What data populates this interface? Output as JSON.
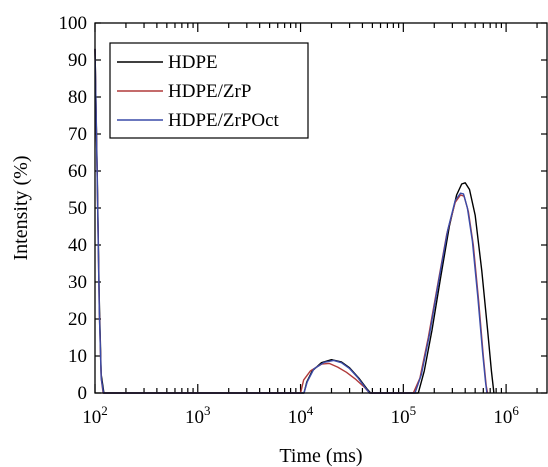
{
  "chart_data": {
    "type": "line",
    "xlabel": "Time (ms)",
    "ylabel": "Intensity (%)",
    "xscale": "log",
    "xlim": [
      100,
      2500000
    ],
    "ylim": [
      0,
      100
    ],
    "yticks": [
      0,
      10,
      20,
      30,
      40,
      50,
      60,
      70,
      80,
      90,
      100
    ],
    "xticks": [
      {
        "value": 100,
        "base": "10",
        "exp": "2"
      },
      {
        "value": 1000,
        "base": "10",
        "exp": "3"
      },
      {
        "value": 10000,
        "base": "10",
        "exp": "4"
      },
      {
        "value": 100000,
        "base": "10",
        "exp": "5"
      },
      {
        "value": 1000000,
        "base": "10",
        "exp": "6"
      }
    ],
    "legend_position": "top-left",
    "grid": false,
    "series": [
      {
        "name": "HDPE",
        "color": "#000000",
        "points": [
          [
            100,
            93
          ],
          [
            105,
            60
          ],
          [
            110,
            25
          ],
          [
            115,
            5
          ],
          [
            122,
            0
          ],
          [
            10800,
            0
          ],
          [
            11500,
            3
          ],
          [
            13000,
            6
          ],
          [
            16000,
            8.2
          ],
          [
            20000,
            9
          ],
          [
            25000,
            8.4
          ],
          [
            30000,
            6.8
          ],
          [
            37000,
            4
          ],
          [
            44000,
            1.2
          ],
          [
            48000,
            0
          ],
          [
            140000,
            0
          ],
          [
            160000,
            6
          ],
          [
            190000,
            17
          ],
          [
            230000,
            31
          ],
          [
            280000,
            45
          ],
          [
            330000,
            53.5
          ],
          [
            370000,
            56.5
          ],
          [
            400000,
            56.8
          ],
          [
            440000,
            55
          ],
          [
            500000,
            48
          ],
          [
            580000,
            33
          ],
          [
            660000,
            17
          ],
          [
            720000,
            6
          ],
          [
            760000,
            0
          ]
        ]
      },
      {
        "name": "HDPE/ZrP",
        "color": "#b03a3a",
        "points": [
          [
            100,
            93
          ],
          [
            105,
            58
          ],
          [
            110,
            22
          ],
          [
            115,
            4
          ],
          [
            120,
            0
          ],
          [
            10000,
            0
          ],
          [
            10700,
            3.5
          ],
          [
            12500,
            6
          ],
          [
            16000,
            7.8
          ],
          [
            19000,
            8
          ],
          [
            23000,
            7
          ],
          [
            28000,
            5.6
          ],
          [
            34000,
            3.8
          ],
          [
            42000,
            1.5
          ],
          [
            47000,
            0
          ],
          [
            125000,
            0
          ],
          [
            145000,
            4
          ],
          [
            175000,
            15
          ],
          [
            215000,
            29
          ],
          [
            265000,
            43
          ],
          [
            320000,
            51.5
          ],
          [
            360000,
            53.5
          ],
          [
            390000,
            53.2
          ],
          [
            430000,
            49
          ],
          [
            480000,
            40
          ],
          [
            540000,
            25
          ],
          [
            600000,
            10
          ],
          [
            640000,
            2
          ],
          [
            660000,
            0
          ]
        ]
      },
      {
        "name": "HDPE/ZrPOct",
        "color": "#3a4ba8",
        "points": [
          [
            100,
            93
          ],
          [
            105,
            58
          ],
          [
            110,
            22
          ],
          [
            115,
            4
          ],
          [
            121,
            0
          ],
          [
            10800,
            0
          ],
          [
            11600,
            3
          ],
          [
            13500,
            6.5
          ],
          [
            17000,
            8.3
          ],
          [
            21000,
            8.8
          ],
          [
            25000,
            8.2
          ],
          [
            30000,
            6.6
          ],
          [
            36000,
            4.2
          ],
          [
            43000,
            1.3
          ],
          [
            47000,
            0
          ],
          [
            130000,
            0
          ],
          [
            150000,
            5
          ],
          [
            180000,
            16
          ],
          [
            220000,
            30
          ],
          [
            270000,
            44
          ],
          [
            320000,
            52
          ],
          [
            360000,
            54
          ],
          [
            385000,
            53.8
          ],
          [
            420000,
            50
          ],
          [
            470000,
            41
          ],
          [
            530000,
            26
          ],
          [
            590000,
            11
          ],
          [
            630000,
            3
          ],
          [
            650000,
            0
          ]
        ]
      }
    ]
  }
}
